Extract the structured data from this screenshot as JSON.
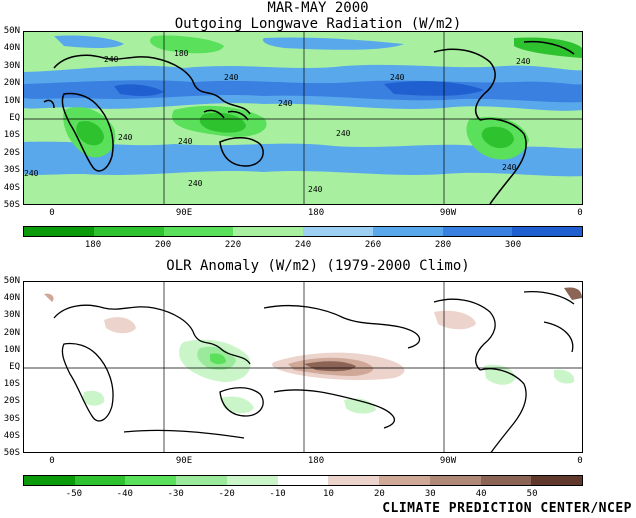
{
  "title_line1": "MAR-MAY 2000",
  "title_line2": "Outgoing Longwave Radiation (W/m2)",
  "title2": "OLR Anomaly (W/m2) (1979-2000 Climo)",
  "lat_labels": [
    "50N",
    "40N",
    "30N",
    "20N",
    "10N",
    "EQ",
    "10S",
    "20S",
    "30S",
    "40S",
    "50S"
  ],
  "lon_labels": [
    "0",
    "90E",
    "180",
    "90W",
    "0"
  ],
  "olr_contour_labels": [
    "180",
    "240",
    "240",
    "240",
    "240",
    "240",
    "240",
    "240",
    "240",
    "240",
    "240",
    "240",
    "240"
  ],
  "colorbar1": {
    "colors": [
      "#0a9a0a",
      "#2fc22f",
      "#5ae05a",
      "#a8f0a0",
      "#9ccff2",
      "#5aa8ec",
      "#3a80e0",
      "#1f5fd0"
    ],
    "labels": [
      "180",
      "200",
      "220",
      "240",
      "260",
      "280",
      "300"
    ]
  },
  "colorbar2": {
    "colors": [
      "#0a9a0a",
      "#2fc22f",
      "#5ae05a",
      "#9bea9b",
      "#c9f5c9",
      "#ffffff",
      "#ecd4cc",
      "#d0a898",
      "#b08878",
      "#8c6456",
      "#60382c"
    ],
    "labels": [
      "-50",
      "-40",
      "-30",
      "-20",
      "-10",
      "10",
      "20",
      "30",
      "40",
      "50"
    ]
  },
  "credit": "CLIMATE PREDICTION CENTER/NCEP"
}
